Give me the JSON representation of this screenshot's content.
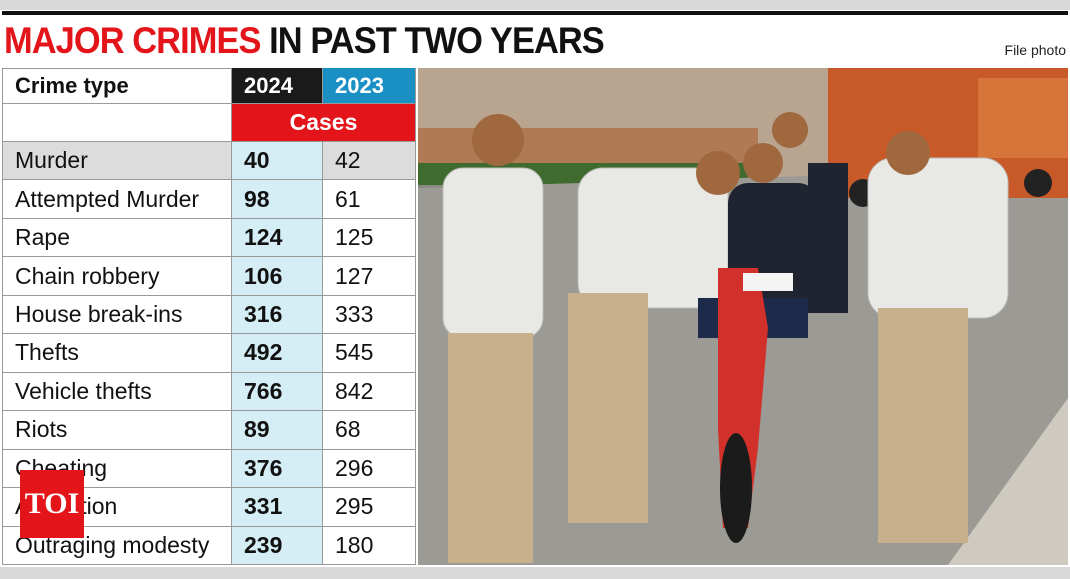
{
  "header": {
    "title_highlight": "MAJOR CRIMES",
    "title_rest": "IN PAST TWO YEARS",
    "credit": "File photo"
  },
  "table": {
    "columns": [
      "Crime type",
      "2024",
      "2023"
    ],
    "subheader": "Cases",
    "rows": [
      [
        "Murder",
        40,
        42
      ],
      [
        "Attempted Murder",
        98,
        61
      ],
      [
        "Rape",
        124,
        125
      ],
      [
        "Chain robbery",
        106,
        127
      ],
      [
        "House break-ins",
        316,
        333
      ],
      [
        "Thefts",
        492,
        545
      ],
      [
        "Vehicle thefts",
        766,
        842
      ],
      [
        "Riots",
        89,
        68
      ],
      [
        "Cheating",
        376,
        296
      ],
      [
        "Abduction",
        331,
        295
      ],
      [
        "Outraging modesty",
        239,
        180
      ]
    ]
  },
  "logo": "TOI"
}
